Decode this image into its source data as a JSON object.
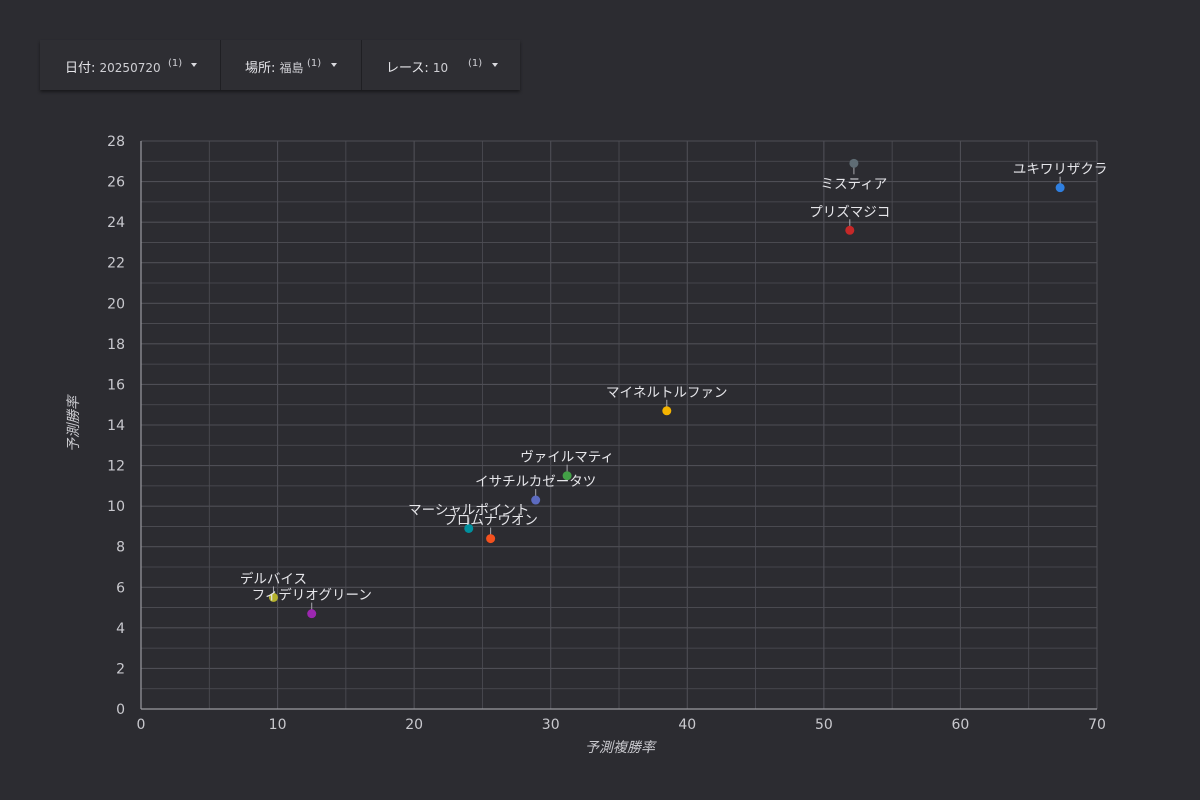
{
  "filters": [
    {
      "label": "日付",
      "value": "20250720",
      "count": "(1)"
    },
    {
      "label": "場所",
      "value": "福島",
      "count": "(1)"
    },
    {
      "label": "レース",
      "value": "10",
      "count": "(1)"
    }
  ],
  "colors": {
    "background": "#2c2c31",
    "grid": "#4e4e55",
    "axis": "#9a9aa0",
    "text": "#d9d9de"
  },
  "chart_data": {
    "type": "scatter",
    "title": "",
    "xlabel": "予測複勝率",
    "ylabel": "予測勝率",
    "xlim": [
      0,
      70
    ],
    "ylim": [
      0,
      28
    ],
    "x_ticks": [
      0,
      10,
      20,
      30,
      40,
      50,
      60,
      70
    ],
    "y_ticks": [
      0,
      2,
      4,
      6,
      8,
      10,
      12,
      14,
      16,
      18,
      20,
      22,
      24,
      26,
      28
    ],
    "grid": true,
    "points": [
      {
        "name": "ユキワリザクラ",
        "x": 67.3,
        "y": 25.7,
        "color": "#2f7fe0",
        "label_pos": "above"
      },
      {
        "name": "ミスティア",
        "x": 52.2,
        "y": 26.9,
        "color": "#5f6c74",
        "label_pos": "below"
      },
      {
        "name": "プリズマジコ",
        "x": 51.9,
        "y": 23.6,
        "color": "#c62828",
        "label_pos": "above"
      },
      {
        "name": "マイネルトルファン",
        "x": 38.5,
        "y": 14.7,
        "color": "#f5b400",
        "label_pos": "above"
      },
      {
        "name": "ヴァイルマティ",
        "x": 31.2,
        "y": 11.5,
        "color": "#43a047",
        "label_pos": "above"
      },
      {
        "name": "イサチルカゼータツ",
        "x": 28.9,
        "y": 10.3,
        "color": "#5c6bc0",
        "label_pos": "above"
      },
      {
        "name": "マーシャルポイント",
        "x": 24.0,
        "y": 8.9,
        "color": "#00909e",
        "label_pos": "above"
      },
      {
        "name": "フロムナウオン",
        "x": 25.6,
        "y": 8.4,
        "color": "#f4511e",
        "label_pos": "above"
      },
      {
        "name": "デルバイス",
        "x": 9.7,
        "y": 5.5,
        "color": "#b5b22c",
        "label_pos": "above"
      },
      {
        "name": "フィデリオグリーン",
        "x": 12.5,
        "y": 4.7,
        "color": "#9c27b0",
        "label_pos": "above"
      }
    ]
  }
}
